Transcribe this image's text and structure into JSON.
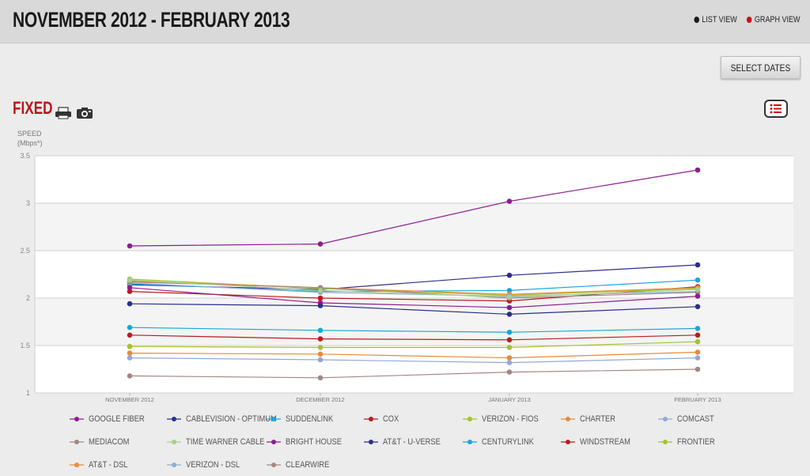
{
  "header": {
    "title": "NOVEMBER 2012 - FEBRUARY 2013",
    "list_view": "LIST VIEW",
    "graph_view": "GRAPH VIEW",
    "list_view_color": "#1a1a1a",
    "graph_view_color": "#c41414"
  },
  "toolbar": {
    "select_dates": "SELECT DATES",
    "section_title": "FIXED"
  },
  "chart_data": {
    "type": "line",
    "ylabel_line1": "SPEED",
    "ylabel_line2": "(Mbps*)",
    "categories": [
      "NOVEMBER 2012",
      "DECEMBER 2012",
      "JANUARY 2013",
      "FEBRUARY 2013"
    ],
    "ylim": [
      1,
      3.5
    ],
    "yticks": [
      "1",
      "1.5",
      "2",
      "2.5",
      "3",
      "3.5"
    ],
    "grid": true,
    "legend_position": "bottom",
    "series": [
      {
        "name": "GOOGLE FIBER",
        "color": "#8e1d8e",
        "values": [
          2.55,
          2.57,
          3.02,
          3.35
        ]
      },
      {
        "name": "CABLEVISION - OPTIMUM",
        "color": "#2b2e8c",
        "values": [
          2.14,
          2.09,
          2.24,
          2.35
        ]
      },
      {
        "name": "SUDDENLINK",
        "color": "#1aa6d9",
        "values": [
          2.15,
          2.07,
          2.08,
          2.19
        ]
      },
      {
        "name": "COX",
        "color": "#b81d1d",
        "values": [
          2.07,
          2.0,
          1.97,
          2.12
        ]
      },
      {
        "name": "VERIZON - FIOS",
        "color": "#a3c32c",
        "values": [
          2.2,
          2.1,
          2.03,
          2.1
        ]
      },
      {
        "name": "CHARTER",
        "color": "#e98a3a",
        "values": [
          2.18,
          2.11,
          2.04,
          2.11
        ]
      },
      {
        "name": "COMCAST",
        "color": "#93a9d3",
        "values": [
          2.16,
          2.06,
          2.02,
          2.07
        ]
      },
      {
        "name": "MEDIACOM",
        "color": "#a28785",
        "values": [
          2.17,
          2.11,
          2.0,
          2.06
        ]
      },
      {
        "name": "TIME WARNER CABLE",
        "color": "#a7cf8f",
        "values": [
          2.19,
          2.08,
          2.01,
          2.09
        ]
      },
      {
        "name": "BRIGHT HOUSE",
        "color": "#8e1d8e",
        "values": [
          2.11,
          1.95,
          1.9,
          2.02
        ]
      },
      {
        "name": "AT&T - U-VERSE",
        "color": "#2b2e8c",
        "values": [
          1.94,
          1.92,
          1.83,
          1.91
        ]
      },
      {
        "name": "CENTURYLINK",
        "color": "#1aa6d9",
        "values": [
          1.69,
          1.66,
          1.64,
          1.68
        ]
      },
      {
        "name": "WINDSTREAM",
        "color": "#b81d1d",
        "values": [
          1.61,
          1.57,
          1.56,
          1.61
        ]
      },
      {
        "name": "FRONTIER",
        "color": "#a3c32c",
        "values": [
          1.49,
          1.48,
          1.48,
          1.54
        ]
      },
      {
        "name": "AT&T - DSL",
        "color": "#e98a3a",
        "values": [
          1.42,
          1.41,
          1.37,
          1.43
        ]
      },
      {
        "name": "VERIZON - DSL",
        "color": "#93a9d3",
        "values": [
          1.37,
          1.35,
          1.32,
          1.37
        ]
      },
      {
        "name": "CLEARWIRE",
        "color": "#a28785",
        "values": [
          1.18,
          1.16,
          1.22,
          1.25
        ]
      }
    ]
  }
}
